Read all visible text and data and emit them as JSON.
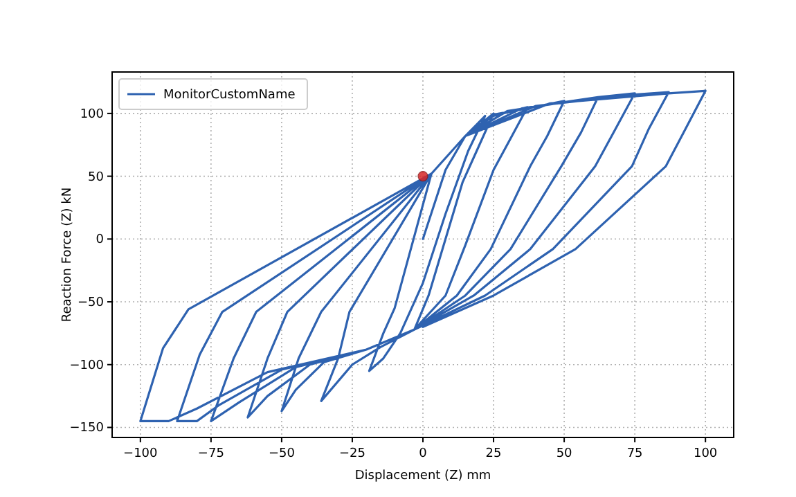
{
  "chart_data": {
    "type": "line",
    "xlabel": "Displacement (Z) mm",
    "ylabel": "Reaction Force (Z) kN",
    "xlim": [
      -110,
      110
    ],
    "ylim": [
      -158,
      133
    ],
    "xticks": [
      -100,
      -75,
      -50,
      -25,
      0,
      25,
      50,
      75,
      100
    ],
    "yticks": [
      -150,
      -100,
      -50,
      0,
      50,
      100
    ],
    "grid": true,
    "legend": "top left",
    "line_style": "solid",
    "series": [
      {
        "name": "MonitorCustomName",
        "color": "#2e62b0",
        "x": [
          0,
          8,
          15,
          22,
          16,
          8,
          0,
          -8,
          -14,
          -19,
          -14,
          -10,
          3,
          15,
          25,
          20,
          14,
          8,
          2,
          -3,
          -15,
          -25,
          -36,
          -30,
          -26,
          3,
          15,
          25,
          37,
          31,
          25,
          15,
          8,
          -3,
          -20,
          -35,
          -45,
          -50,
          -44,
          -36,
          3,
          15,
          25,
          37,
          50,
          44,
          38,
          24,
          12,
          -3,
          -20,
          -40,
          -55,
          -62,
          -55,
          -48,
          3,
          15,
          30,
          50,
          62,
          56,
          49,
          31,
          15,
          -3,
          -20,
          -45,
          -65,
          -75,
          -67,
          -59,
          3,
          15,
          35,
          62,
          75,
          68,
          61,
          38,
          18,
          -3,
          -20,
          -50,
          -72,
          -80,
          -87,
          -79,
          -71,
          3,
          15,
          40,
          75,
          87,
          80,
          74,
          46,
          22,
          -3,
          -20,
          -55,
          -80,
          -90,
          -100,
          -92,
          -83,
          3,
          15,
          45,
          87,
          100,
          93,
          86,
          54,
          25,
          0
        ],
        "values": [
          0,
          55,
          82,
          98,
          70,
          20,
          -35,
          -75,
          -95,
          -105,
          -75,
          -55,
          52,
          82,
          100,
          75,
          45,
          0,
          -45,
          -72,
          -86,
          -100,
          -129,
          -95,
          -58,
          52,
          82,
          98,
          105,
          80,
          55,
          -5,
          -45,
          -72,
          -88,
          -98,
          -120,
          -137,
          -95,
          -58,
          52,
          82,
          99,
          104,
          110,
          82,
          58,
          -8,
          -45,
          -72,
          -88,
          -100,
          -125,
          -142,
          -95,
          -58,
          52,
          82,
          102,
          109,
          113,
          85,
          58,
          -8,
          -45,
          -72,
          -88,
          -102,
          -130,
          -145,
          -95,
          -58,
          52,
          82,
          104,
          113,
          116,
          87,
          58,
          -8,
          -45,
          -72,
          -88,
          -104,
          -132,
          -145,
          -145,
          -92,
          -58,
          52,
          82,
          106,
          115,
          117,
          88,
          58,
          -8,
          -45,
          -72,
          -88,
          -106,
          -135,
          -145,
          -145,
          -87,
          -56,
          52,
          82,
          108,
          116,
          118,
          88,
          58,
          -8,
          -45,
          -70
        ]
      },
      {
        "type": "scatter",
        "color": "#d62728",
        "x": [
          0
        ],
        "values": [
          50
        ]
      }
    ]
  }
}
